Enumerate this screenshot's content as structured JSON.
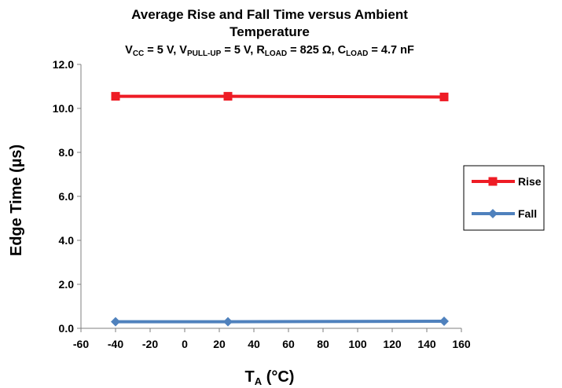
{
  "chart_data": {
    "type": "line",
    "title_lines": [
      "Average Rise and Fall Time versus  Ambient",
      "Temperature"
    ],
    "subtitle": {
      "vcc_sym": "V",
      "vcc_sub": "CC",
      "vcc_val": " = 5 V, ",
      "vpu_sym": "V",
      "vpu_sub": "PULL-UP",
      "vpu_val": " = 5 V, ",
      "rl_sym": "R",
      "rl_sub": "LOAD",
      "rl_val": " = 825 Ω, ",
      "cl_sym": "C",
      "cl_sub": "LOAD",
      "cl_val": " = 4.7 nF"
    },
    "xlabel_main": "T",
    "xlabel_sub": "A",
    "xlabel_rest": " (°C)",
    "ylabel": "Edge Time (µs)",
    "xlim": [
      -60,
      160
    ],
    "ylim": [
      0,
      12
    ],
    "xticks": [
      -60,
      -40,
      -20,
      0,
      20,
      40,
      60,
      80,
      100,
      120,
      140,
      160
    ],
    "yticks": [
      0,
      2,
      4,
      6,
      8,
      10,
      12
    ],
    "ytick_labels": [
      "0.0",
      "2.0",
      "4.0",
      "6.0",
      "8.0",
      "10.0",
      "12.0"
    ],
    "legend_position": "right",
    "series": [
      {
        "name": "Rise",
        "color": "#ee1c25",
        "marker": "square",
        "x": [
          -40,
          25,
          150
        ],
        "y": [
          10.55,
          10.55,
          10.52
        ]
      },
      {
        "name": "Fall",
        "color": "#4f81bd",
        "marker": "diamond",
        "x": [
          -40,
          25,
          150
        ],
        "y": [
          0.3,
          0.3,
          0.32
        ]
      }
    ]
  }
}
